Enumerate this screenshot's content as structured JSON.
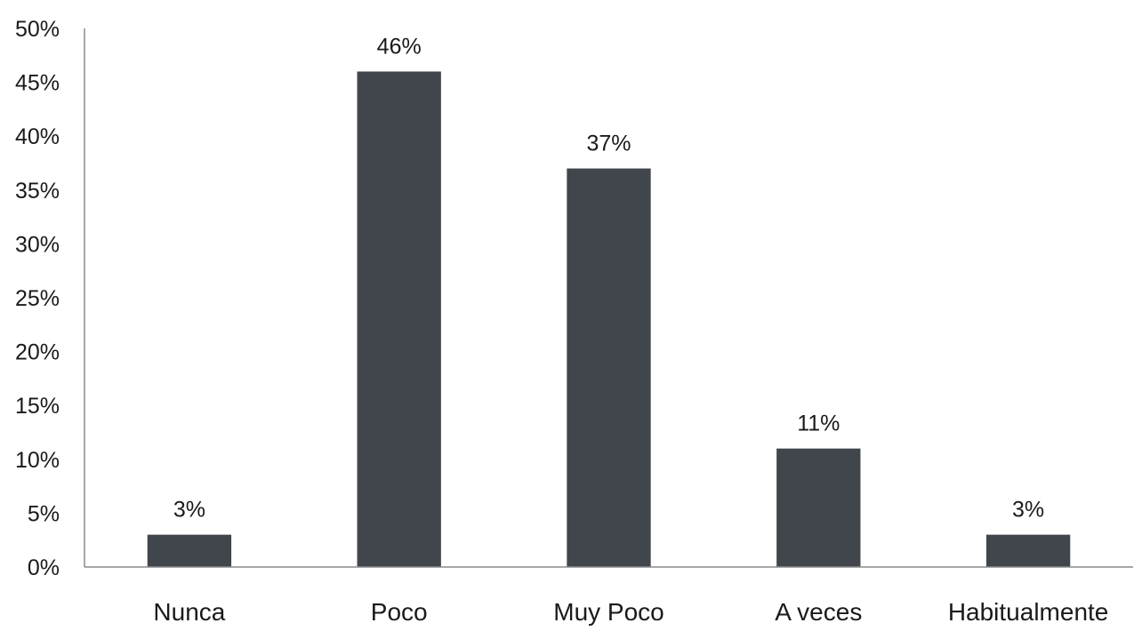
{
  "chart_data": {
    "type": "bar",
    "title": "",
    "xlabel": "",
    "ylabel": "",
    "categories": [
      "Nunca",
      "Poco",
      "Muy Poco",
      "A veces",
      "Habitualmente"
    ],
    "values": [
      3,
      46,
      37,
      11,
      3
    ],
    "data_labels": [
      "3%",
      "46%",
      "37%",
      "11%",
      "3%"
    ],
    "ylim": [
      0,
      50
    ],
    "y_ticks": [
      0,
      5,
      10,
      15,
      20,
      25,
      30,
      35,
      40,
      45,
      50
    ],
    "y_tick_labels": [
      "0%",
      "5%",
      "10%",
      "15%",
      "20%",
      "25%",
      "30%",
      "35%",
      "40%",
      "45%",
      "50%"
    ],
    "grid": false,
    "legend": "none",
    "bar_color": "#41464c"
  }
}
